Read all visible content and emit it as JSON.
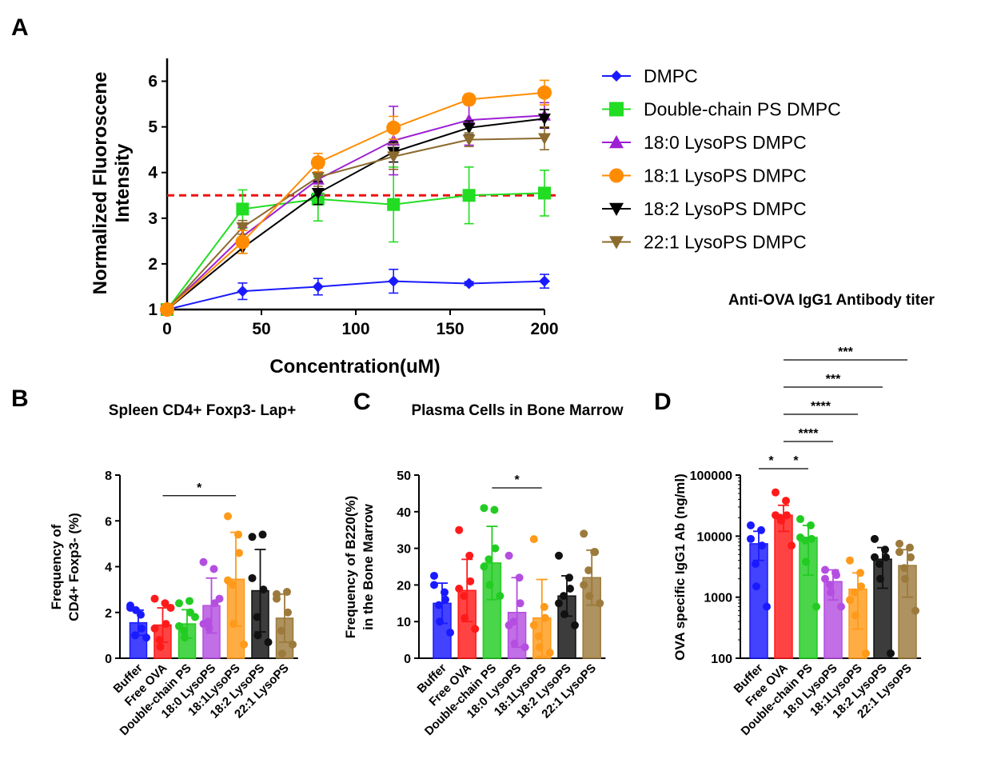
{
  "panel_labels": {
    "a": "A",
    "b": "B",
    "c": "C",
    "d": "D"
  },
  "colors": {
    "DMPC": "#1a1aff",
    "Double-chain PS DMPC": "#22dd22",
    "18:0 LysoPS DMPC": "#9d1fd4",
    "18:1 LysoPS DMPC": "#ff8c00",
    "18:2 LysoPS DMPC": "#000000",
    "22:1 LysoPS DMPC": "#8b6a2e",
    "bars": [
      "#1a1aff",
      "#ff1a1a",
      "#22cc22",
      "#b44ee0",
      "#ff9a1a",
      "#111111",
      "#9c7a3c"
    ],
    "threshold": "#ee1111"
  },
  "chart_data": [
    {
      "id": "A",
      "type": "line",
      "title": "",
      "xlabel": "Concentration(uM)",
      "ylabel_lines": [
        "Normalized Fluoroscene",
        "Intensity"
      ],
      "xlim": [
        0,
        200
      ],
      "ylim": [
        1,
        6.5
      ],
      "xticks": [
        "0",
        "50",
        "100",
        "150",
        "200"
      ],
      "yticks": [
        "1",
        "2",
        "3",
        "4",
        "5",
        "6"
      ],
      "x": [
        0,
        40,
        80,
        120,
        160,
        200
      ],
      "reference_line": {
        "y": 3.5,
        "style": "dashed"
      },
      "legend_position": "right",
      "series": [
        {
          "name": "DMPC",
          "marker": "diamond",
          "values": [
            1.0,
            1.4,
            1.5,
            1.62,
            1.57,
            1.62
          ],
          "err": [
            0,
            0.18,
            0.18,
            0.26,
            0.04,
            0.15
          ]
        },
        {
          "name": "Double-chain PS DMPC",
          "marker": "square",
          "values": [
            1.0,
            3.2,
            3.42,
            3.3,
            3.5,
            3.55
          ],
          "err": [
            0,
            0.42,
            0.48,
            0.82,
            0.62,
            0.5
          ]
        },
        {
          "name": "18:0 LysoPS DMPC",
          "marker": "triangle-up",
          "values": [
            1.0,
            2.6,
            3.85,
            4.7,
            5.15,
            5.25
          ],
          "err": [
            0,
            0.2,
            0.35,
            0.75,
            0.55,
            0.28
          ]
        },
        {
          "name": "18:1 LysoPS DMPC",
          "marker": "circle",
          "values": [
            1.0,
            2.48,
            4.22,
            4.98,
            5.6,
            5.75
          ],
          "err": [
            0,
            0.25,
            0.2,
            0.25,
            0.12,
            0.27
          ]
        },
        {
          "name": "18:2 LysoPS DMPC",
          "marker": "triangle-down",
          "values": [
            1.0,
            2.35,
            3.55,
            4.45,
            4.98,
            5.18
          ],
          "err": [
            0,
            0.12,
            0.25,
            0.22,
            0.15,
            0.2
          ]
        },
        {
          "name": "22:1 LysoPS DMPC",
          "marker": "triangle-down",
          "values": [
            1.0,
            2.8,
            3.9,
            4.35,
            4.72,
            4.75
          ],
          "err": [
            0,
            0.15,
            0.2,
            0.28,
            0.15,
            0.25
          ]
        }
      ]
    },
    {
      "id": "B",
      "type": "bar",
      "title": "Spleen CD4+ Foxp3- Lap+",
      "ylabel_lines": [
        "Frequency of",
        "CD4+ Foxp3- (%)"
      ],
      "ylim": [
        0,
        8
      ],
      "yticks": [
        "0",
        "2",
        "4",
        "6",
        "8"
      ],
      "categories": [
        "Buffer",
        "Free OVA",
        "Double-chain PS",
        "18:0 LysoPS",
        "18:1LysoPS",
        "18:2 LysoPS",
        "22:1 LysoPS"
      ],
      "values": [
        1.55,
        1.45,
        1.5,
        2.3,
        3.45,
        2.95,
        1.75
      ],
      "err": [
        0.55,
        0.75,
        0.62,
        1.2,
        2.05,
        1.8,
        1.05
      ],
      "points": [
        [
          2.2,
          1.9,
          1.3,
          1.0,
          2.1,
          0.9,
          2.3
        ],
        [
          2.6,
          2.4,
          1.5,
          0.8,
          0.5,
          2.2,
          1.3
        ],
        [
          2.4,
          2.5,
          2.0,
          1.2,
          0.9,
          1.8,
          1.4
        ],
        [
          4.2,
          3.9,
          2.4,
          1.6,
          1.3,
          2.6,
          1.5
        ],
        [
          6.2,
          5.4,
          4.6,
          3.2,
          1.5,
          0.6,
          3.4
        ],
        [
          5.3,
          5.4,
          3.0,
          1.8,
          1.0,
          0.7,
          3.5
        ],
        [
          2.8,
          2.9,
          2.0,
          1.2,
          0.2,
          0.6,
          2.6
        ]
      ],
      "comparisons": [
        {
          "from": 1,
          "to": 4,
          "y": 7.1,
          "label": "*"
        }
      ]
    },
    {
      "id": "C",
      "type": "bar",
      "title": "Plasma Cells in Bone Marrow",
      "ylabel_lines": [
        "Frequency of B220(%)",
        "in the Bone Marrow"
      ],
      "ylim": [
        0,
        50
      ],
      "yticks": [
        "0",
        "10",
        "20",
        "30",
        "40",
        "50"
      ],
      "categories": [
        "Buffer",
        "Free OVA",
        "Double-chain PS",
        "18:0 LysoPS",
        "18:1LysoPS",
        "18:2 LysoPS",
        "22:1 LysoPS"
      ],
      "values": [
        15.0,
        18.5,
        26.0,
        12.5,
        11.0,
        17.0,
        22.0
      ],
      "err": [
        5.5,
        8.5,
        10.0,
        9.5,
        10.5,
        5.5,
        7.5
      ],
      "points": [
        [
          22.5,
          18.0,
          16.0,
          14.5,
          10.0,
          7.0,
          20.0
        ],
        [
          35.0,
          28.0,
          21.0,
          17.0,
          11.0,
          8.0,
          19.0
        ],
        [
          41.0,
          40.5,
          30.0,
          27.0,
          20.0,
          17.0,
          25.0
        ],
        [
          28.0,
          22.0,
          15.0,
          10.0,
          4.0,
          3.0,
          9.0
        ],
        [
          32.5,
          14.0,
          11.0,
          6.0,
          3.0,
          1.5,
          9.0
        ],
        [
          28.0,
          22.0,
          19.0,
          17.0,
          12.0,
          9.0,
          15.0
        ],
        [
          34.0,
          29.0,
          29.0,
          24.0,
          17.0,
          15.0,
          20.0
        ]
      ],
      "comparisons": [
        {
          "from": 2,
          "to": 4,
          "y": 46.5,
          "label": "*"
        }
      ]
    },
    {
      "id": "D",
      "type": "bar",
      "scale": "log",
      "title": "Anti-OVA IgG1 Antibody titer",
      "ylabel_lines": [
        "OVA specific IgG1 Ab (ng/ml)"
      ],
      "ylim": [
        100,
        100000
      ],
      "yticks": [
        "100",
        "1000",
        "10000",
        "100000"
      ],
      "categories": [
        "Buffer",
        "Free OVA",
        "Double-chain PS",
        "18:0 LysoPS",
        "18:1LysoPS",
        "18:2 LysoPS",
        "22:1 LysoPS"
      ],
      "values": [
        7500,
        22000,
        9500,
        1800,
        1350,
        4200,
        3300
      ],
      "err_upper": [
        12000,
        32000,
        15000,
        2800,
        2500,
        6500,
        6000
      ],
      "err_lower": [
        4000,
        12000,
        2300,
        900,
        300,
        1400,
        1000
      ],
      "points": [
        [
          15000,
          12500,
          7000,
          3500,
          1500,
          700,
          9000
        ],
        [
          52000,
          38000,
          22000,
          20000,
          18000,
          7000,
          22000
        ],
        [
          19000,
          15000,
          9000,
          8500,
          3800,
          700,
          9500
        ],
        [
          2800,
          2500,
          2300,
          1600,
          1200,
          700,
          2000
        ],
        [
          4000,
          2500,
          1500,
          1200,
          500,
          120,
          900
        ],
        [
          9000,
          6000,
          4500,
          3500,
          2000,
          120,
          4500
        ],
        [
          7500,
          6500,
          4500,
          3000,
          2000,
          600,
          5500
        ]
      ],
      "comparisons": [
        {
          "from": 0,
          "to": 1,
          "level": 0,
          "label": "*"
        },
        {
          "from": 1,
          "to": 2,
          "level": 0,
          "label": "*"
        },
        {
          "from": 1,
          "to": 3,
          "level": 1,
          "label": "****"
        },
        {
          "from": 1,
          "to": 4,
          "level": 2,
          "label": "****"
        },
        {
          "from": 1,
          "to": 5,
          "level": 3,
          "label": "***"
        },
        {
          "from": 1,
          "to": 6,
          "level": 4,
          "label": "***"
        }
      ]
    }
  ]
}
